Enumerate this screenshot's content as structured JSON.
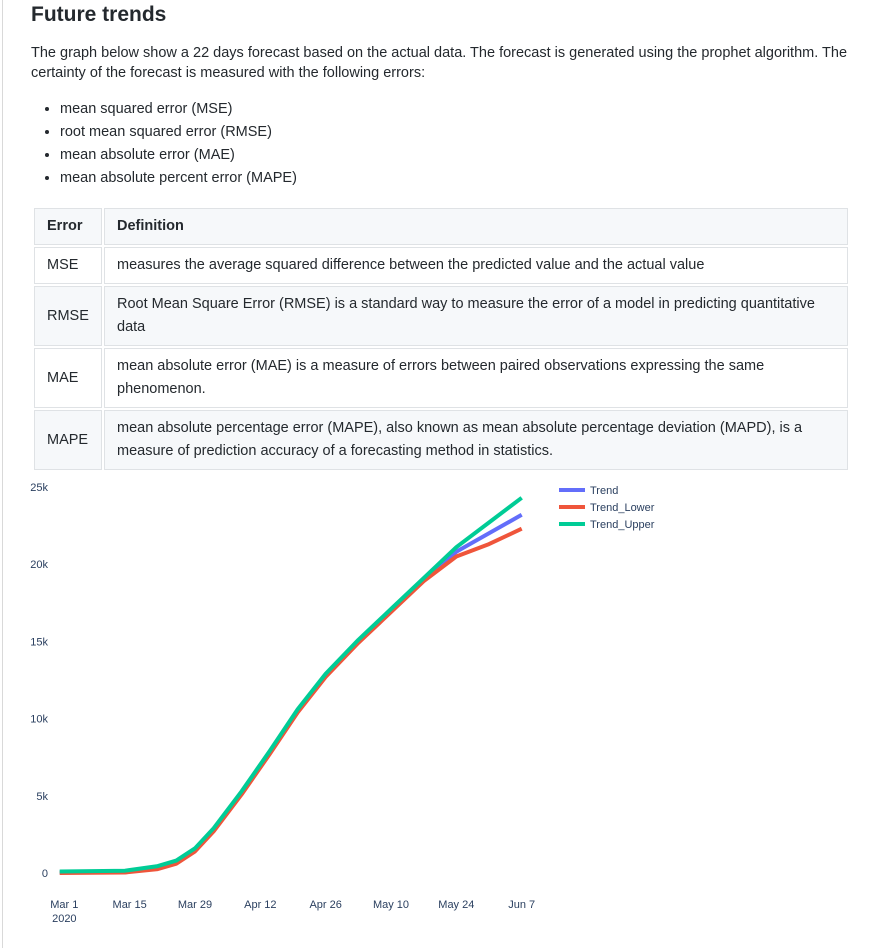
{
  "section": {
    "title": "Future trends",
    "intro": "The graph below show a 22 days forecast based on the actual data. The forecast is generated using the prophet algorithm. The certainty of the forecast is measured with the following errors:",
    "bullets": [
      "mean squared error (MSE)",
      "root mean squared error (RMSE)",
      "mean absolute error (MAE)",
      "mean absolute percent error (MAPE)"
    ]
  },
  "table": {
    "headers": [
      "Error",
      "Definition"
    ],
    "rows": [
      [
        "MSE",
        "measures the average squared difference between the predicted value and the actual value"
      ],
      [
        "RMSE",
        "Root Mean Square Error (RMSE) is a standard way to measure the error of a model in predicting quantitative data"
      ],
      [
        "MAE",
        "mean absolute error (MAE) is a measure of errors between paired observations expressing the same phenomenon."
      ],
      [
        "MAPE",
        "mean absolute percentage error (MAPE), also known as mean absolute percentage deviation (MAPD), is a measure of prediction accuracy of a forecasting method in statistics."
      ]
    ]
  },
  "chart_data": {
    "type": "line",
    "x_dates": [
      "2020-02-29",
      "2020-03-07",
      "2020-03-14",
      "2020-03-21",
      "2020-03-25",
      "2020-03-29",
      "2020-04-02",
      "2020-04-08",
      "2020-04-14",
      "2020-04-20",
      "2020-04-26",
      "2020-05-03",
      "2020-05-10",
      "2020-05-17",
      "2020-05-24",
      "2020-05-31",
      "2020-06-07"
    ],
    "series": [
      {
        "name": "Trend",
        "color": "#636efa",
        "values": [
          50,
          60,
          80,
          350,
          700,
          1500,
          2800,
          5200,
          7800,
          10500,
          12800,
          15000,
          17000,
          19000,
          20800,
          22000,
          23200
        ]
      },
      {
        "name": "Trend_Lower",
        "color": "#ef553b",
        "values": [
          0,
          10,
          30,
          250,
          600,
          1400,
          2700,
          5100,
          7700,
          10400,
          12700,
          14900,
          16900,
          18900,
          20500,
          21300,
          22300
        ]
      },
      {
        "name": "Trend_Upper",
        "color": "#00cc96",
        "values": [
          100,
          120,
          150,
          450,
          800,
          1600,
          2900,
          5300,
          7900,
          10600,
          12900,
          15100,
          17100,
          19100,
          21100,
          22700,
          24300
        ]
      }
    ],
    "x_ticks": [
      "Mar 1\n2020",
      "Mar 15",
      "Mar 29",
      "Apr 12",
      "Apr 26",
      "May 10",
      "May 24",
      "Jun 7"
    ],
    "y_ticks": [
      "0",
      "5k",
      "10k",
      "15k",
      "20k",
      "25k"
    ],
    "ylim": [
      0,
      25000
    ],
    "xlim": [
      "2020-02-28",
      "2020-06-12"
    ],
    "grid": false,
    "legend": "top-right"
  }
}
